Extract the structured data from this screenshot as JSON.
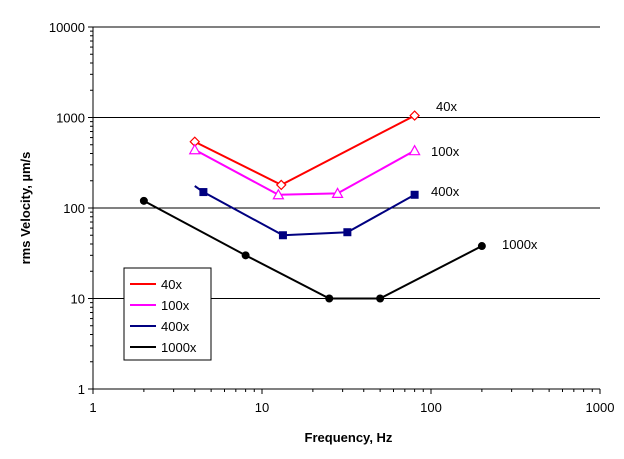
{
  "chart_data": {
    "type": "line",
    "xlabel": "Frequency, Hz",
    "ylabel": "rms Velocity,  µm/s",
    "xscale": "log",
    "yscale": "log",
    "xlim": [
      1,
      1000
    ],
    "ylim": [
      1,
      10000
    ],
    "x_ticks": [
      "1",
      "10",
      "100",
      "1000"
    ],
    "y_ticks": [
      "1",
      "10",
      "100",
      "1000",
      "10000"
    ],
    "grid": "horizontal major gridlines",
    "legend": {
      "placement": "lower-left inside plot",
      "entries": [
        "40x",
        "100x",
        "400x",
        "1000x"
      ]
    },
    "series": [
      {
        "name": "40x",
        "color": "#ff0000",
        "marker": "diamond-open",
        "marker_x": [
          4,
          13,
          80
        ],
        "marker_y": [
          540,
          180,
          1050
        ],
        "line_x": [
          4,
          13,
          80
        ],
        "line_y": [
          540,
          180,
          1050
        ],
        "end_label": "40x"
      },
      {
        "name": "100x",
        "color": "#ff00ff",
        "marker": "triangle-open",
        "marker_x": [
          4,
          12.5,
          28,
          80
        ],
        "marker_y": [
          440,
          140,
          145,
          430
        ],
        "line_x": [
          4,
          12.5,
          28,
          80
        ],
        "line_y": [
          440,
          140,
          145,
          430
        ],
        "end_label": "100x"
      },
      {
        "name": "400x",
        "color": "#000080",
        "marker": "square-filled",
        "marker_x": [
          4.5,
          13.3,
          32,
          80
        ],
        "marker_y": [
          150,
          50,
          54,
          140
        ],
        "line_x": [
          4,
          4.5,
          13.3,
          32,
          80
        ],
        "line_y": [
          175,
          150,
          50,
          54,
          140
        ],
        "end_label": "400x"
      },
      {
        "name": "1000x",
        "color": "#000000",
        "marker": "circle-filled",
        "marker_x": [
          2,
          8,
          25,
          50,
          200
        ],
        "marker_y": [
          120,
          30,
          10,
          10,
          38
        ],
        "line_x": [
          2,
          8,
          25,
          50,
          200
        ],
        "line_y": [
          120,
          30,
          10,
          10,
          38
        ],
        "end_label": "1000x"
      }
    ]
  }
}
